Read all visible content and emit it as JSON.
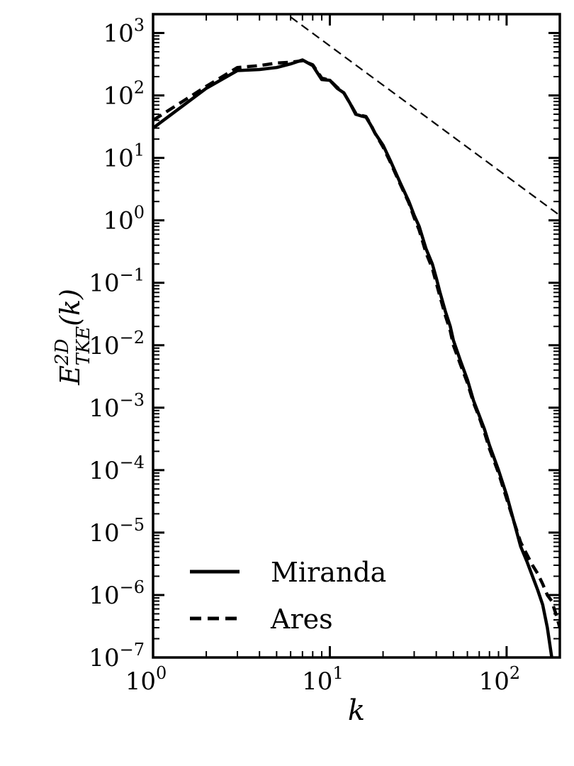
{
  "chart_data": {
    "type": "line",
    "xlabel": "k",
    "ylabel": {
      "base": "E",
      "sup": "2D",
      "sub": "TKE",
      "arg": "(k)"
    },
    "xscale": "log",
    "yscale": "log",
    "xlim": [
      1,
      200
    ],
    "ylim": [
      1e-07,
      2000
    ],
    "x_ticks": [
      {
        "value": 1,
        "base": "10",
        "exp": "0"
      },
      {
        "value": 10,
        "base": "10",
        "exp": "1"
      },
      {
        "value": 100,
        "base": "10",
        "exp": "2"
      }
    ],
    "y_ticks": [
      {
        "value": 1000,
        "base": "10",
        "exp": "3"
      },
      {
        "value": 100,
        "base": "10",
        "exp": "2"
      },
      {
        "value": 10,
        "base": "10",
        "exp": "1"
      },
      {
        "value": 1,
        "base": "10",
        "exp": "0"
      },
      {
        "value": 0.1,
        "base": "10",
        "exp": "−1"
      },
      {
        "value": 0.01,
        "base": "10",
        "exp": "−2"
      },
      {
        "value": 0.001,
        "base": "10",
        "exp": "−3"
      },
      {
        "value": 0.0001,
        "base": "10",
        "exp": "−4"
      },
      {
        "value": 1e-05,
        "base": "10",
        "exp": "−5"
      },
      {
        "value": 1e-06,
        "base": "10",
        "exp": "−6"
      },
      {
        "value": 1e-07,
        "base": "10",
        "exp": "−7"
      }
    ],
    "grid": false,
    "legend_position": "bottom-left",
    "series": [
      {
        "name": "Miranda",
        "style": "solid",
        "color": "#000000",
        "x": [
          1,
          2,
          3,
          4,
          5,
          6,
          7,
          8,
          9,
          10,
          11,
          12,
          13,
          14,
          15,
          16,
          17,
          18,
          20,
          22,
          25,
          28,
          30,
          32,
          35,
          38,
          40,
          42,
          45,
          48,
          50,
          55,
          60,
          65,
          70,
          75,
          80,
          90,
          100,
          110,
          120,
          130,
          140,
          150,
          160,
          170,
          180
        ],
        "y": [
          30,
          130,
          250,
          260,
          280,
          320,
          370,
          300,
          180,
          175,
          130,
          110,
          75,
          50,
          47,
          45,
          34,
          25,
          16,
          9,
          4,
          2,
          1.2,
          0.8,
          0.35,
          0.2,
          0.12,
          0.07,
          0.035,
          0.02,
          0.012,
          0.0055,
          0.0028,
          0.0013,
          0.00075,
          0.00045,
          0.00025,
          0.0001,
          4e-05,
          1.5e-05,
          6e-06,
          3.5e-06,
          2e-06,
          1.2e-06,
          7e-07,
          3e-07,
          1e-07
        ]
      },
      {
        "name": "Ares",
        "style": "dashed",
        "color": "#000000",
        "x": [
          1,
          2,
          3,
          4,
          5,
          6,
          7,
          8,
          9,
          10,
          11,
          12,
          13,
          14,
          15,
          16,
          17,
          18,
          20,
          22,
          25,
          28,
          30,
          32,
          35,
          38,
          40,
          42,
          45,
          48,
          50,
          55,
          60,
          65,
          70,
          75,
          80,
          90,
          100,
          110,
          120,
          130,
          140,
          150,
          160,
          170,
          180,
          190,
          200
        ],
        "y": [
          40,
          140,
          280,
          300,
          330,
          340,
          360,
          310,
          190,
          175,
          135,
          110,
          75,
          52,
          48,
          46,
          35,
          25,
          15,
          8.5,
          3.8,
          1.9,
          1.1,
          0.7,
          0.3,
          0.17,
          0.1,
          0.06,
          0.03,
          0.017,
          0.01,
          0.0048,
          0.0025,
          0.0012,
          0.0007,
          0.0004,
          0.00022,
          9e-05,
          3.5e-05,
          1.5e-05,
          7e-06,
          4.5e-06,
          3e-06,
          2.2e-06,
          1.5e-06,
          1e-06,
          8e-07,
          5e-07,
          3e-07
        ]
      },
      {
        "name": "",
        "role": "reference slope",
        "style": "thin-dashed",
        "color": "#000000",
        "x": [
          6,
          200
        ],
        "y": [
          1800,
          1.2
        ]
      }
    ]
  }
}
